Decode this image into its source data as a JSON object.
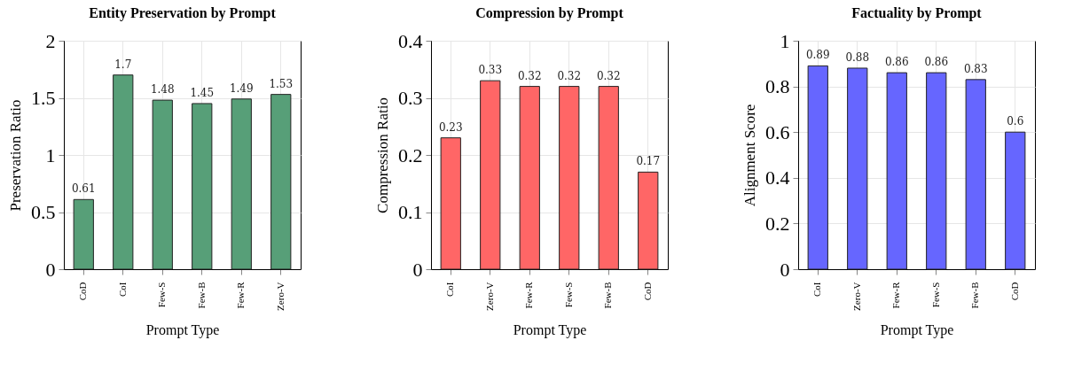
{
  "chart_data": [
    {
      "type": "bar",
      "title": "Entity Preservation by Prompt",
      "xlabel": "Prompt Type",
      "ylabel": "Preservation Ratio",
      "categories": [
        "CoD",
        "CoI",
        "Few-S",
        "Few-B",
        "Few-R",
        "Zero-V"
      ],
      "values": [
        0.61,
        1.7,
        1.48,
        1.45,
        1.49,
        1.53
      ],
      "color": "#579f78",
      "ylim": [
        0,
        2
      ],
      "yticks": [
        0,
        0.5,
        1,
        1.5,
        2
      ],
      "grid": true,
      "data_labels": true
    },
    {
      "type": "bar",
      "title": "Compression by Prompt",
      "xlabel": "Prompt Type",
      "ylabel": "Compression Ratio",
      "categories": [
        "CoI",
        "Zero-V",
        "Few-R",
        "Few-S",
        "Few-B",
        "CoD"
      ],
      "values": [
        0.23,
        0.33,
        0.32,
        0.32,
        0.32,
        0.17
      ],
      "color": "#ff6666",
      "ylim": [
        0,
        0.4
      ],
      "yticks": [
        0,
        0.1,
        0.2,
        0.3,
        0.4
      ],
      "grid": true,
      "data_labels": true
    },
    {
      "type": "bar",
      "title": "Factuality by Prompt",
      "xlabel": "Prompt Type",
      "ylabel": "Alignment Score",
      "categories": [
        "CoI",
        "Zero-V",
        "Few-R",
        "Few-S",
        "Few-B",
        "CoD"
      ],
      "values": [
        0.89,
        0.88,
        0.86,
        0.86,
        0.83,
        0.6
      ],
      "color": "#6666ff",
      "ylim": [
        0,
        1
      ],
      "yticks": [
        0,
        0.2,
        0.4,
        0.6,
        0.8,
        1
      ],
      "grid": true,
      "data_labels": true
    }
  ]
}
